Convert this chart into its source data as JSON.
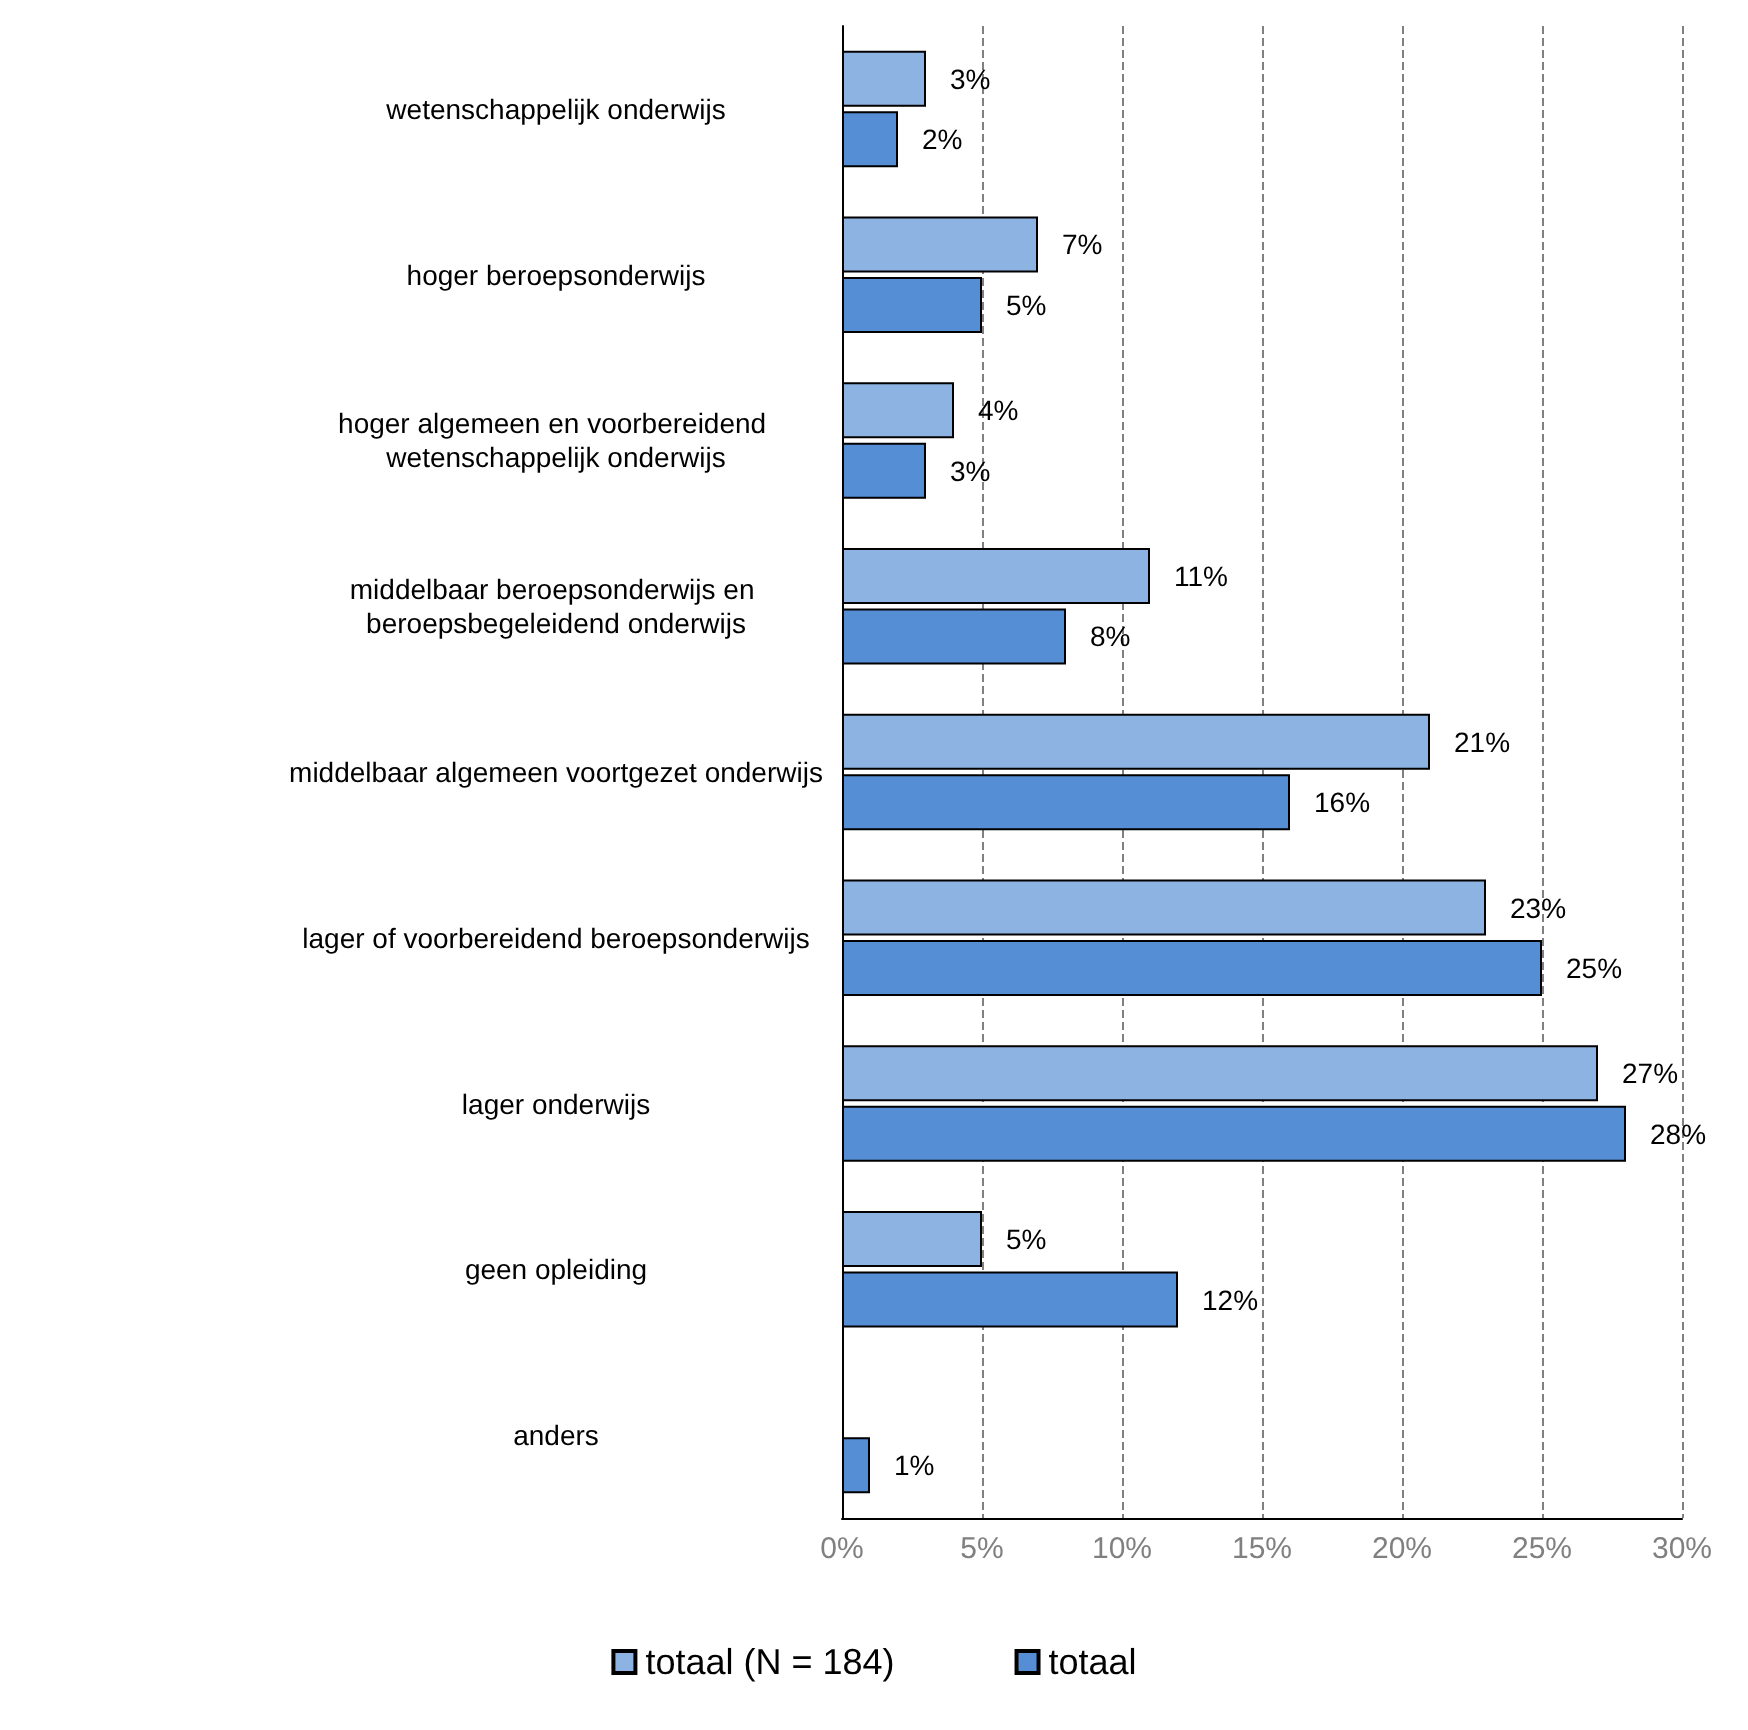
{
  "chart_data": {
    "type": "bar",
    "orientation": "horizontal",
    "categories": [
      "wetenschappelijk onderwijs",
      "hoger beroepsonderwijs",
      "hoger algemeen en voorbereidend wetenschappelijk onderwijs",
      "middelbaar beroepsonderwijs en beroepsbegeleidend onderwijs",
      "middelbaar algemeen voortgezet onderwijs",
      "lager of voorbereidend beroepsonderwijs",
      "lager onderwijs",
      "geen opleiding",
      "anders"
    ],
    "series": [
      {
        "name": "totaal (N = 184)",
        "color": "#8db3e2",
        "values": [
          3,
          7,
          4,
          11,
          21,
          23,
          27,
          5,
          null
        ],
        "value_labels": [
          "3%",
          "7%",
          "4%",
          "11%",
          "21%",
          "23%",
          "27%",
          "5%",
          null
        ]
      },
      {
        "name": "totaal",
        "color": "#558ed5",
        "values": [
          2,
          5,
          3,
          8,
          16,
          25,
          28,
          12,
          1
        ],
        "value_labels": [
          "2%",
          "5%",
          "3%",
          "8%",
          "16%",
          "25%",
          "28%",
          "12%",
          "1%"
        ]
      }
    ],
    "xlim": [
      0,
      30
    ],
    "xticks": [
      {
        "value": 0,
        "label": "0%"
      },
      {
        "value": 5,
        "label": "5%"
      },
      {
        "value": 10,
        "label": "10%"
      },
      {
        "value": 15,
        "label": "15%"
      },
      {
        "value": 20,
        "label": "20%"
      },
      {
        "value": 25,
        "label": "25%"
      },
      {
        "value": 30,
        "label": "30%"
      }
    ],
    "grid": "x",
    "legend": "bottom"
  }
}
